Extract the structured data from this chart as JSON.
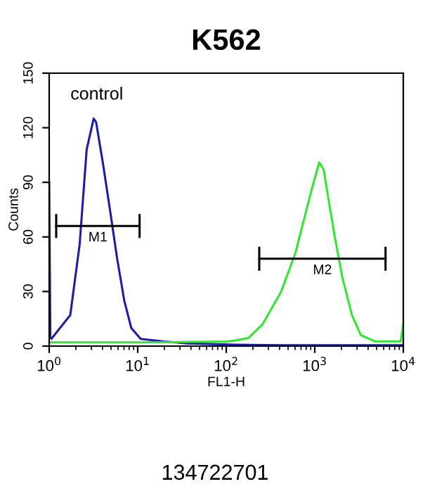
{
  "chart_data": {
    "type": "line",
    "title": "K562",
    "xlabel": "FL1-H",
    "ylabel": "Counts",
    "log": "x",
    "xlim": [
      1,
      10000
    ],
    "ylim": [
      0,
      150
    ],
    "xticks": [
      {
        "value": 1,
        "label": "10$^{0}$"
      },
      {
        "value": 10,
        "label": "10$^{1}$"
      },
      {
        "value": 100,
        "label": "10$^{2}$"
      },
      {
        "value": 1000,
        "label": "10$^{3}$"
      },
      {
        "value": 10000,
        "label": "10$^{4}$"
      }
    ],
    "yticks": [
      0,
      30,
      60,
      90,
      120,
      150
    ],
    "grid": false,
    "annotations": [
      "control",
      "134722701"
    ],
    "series": [
      {
        "color": "#1c1ca8",
        "x": [
          1,
          1.03,
          1.06,
          1.73,
          2.21,
          2.65,
          3.18,
          3.39,
          4.06,
          4.89,
          5.86,
          7.05,
          8.45,
          10.8,
          19.9,
          36.6,
          123,
          417,
          1413,
          10000
        ],
        "values": [
          90,
          5,
          4,
          17,
          56,
          108,
          125,
          123,
          100,
          74,
          48,
          25,
          10,
          4,
          2.5,
          1.5,
          0.8,
          0.5,
          0.5,
          0.5
        ]
      },
      {
        "color": "#33e633",
        "x": [
          1,
          10,
          100,
          123,
          178,
          257,
          417,
          603,
          776,
          933,
          1122,
          1259,
          1413,
          1698,
          2042,
          2630,
          3311,
          4786,
          9333,
          10000
        ],
        "values": [
          2,
          2,
          2.5,
          3,
          4.4,
          12,
          30,
          51,
          72,
          87,
          101,
          97,
          82,
          59,
          38,
          17,
          6,
          2.6,
          2.6,
          12
        ]
      },
      {
        "name": "M1",
        "color": "#000000",
        "x": [
          1.2,
          10.5
        ],
        "values": [
          66,
          66
        ]
      },
      {
        "name": "M2",
        "color": "#000000",
        "x": [
          236,
          6300
        ],
        "values": [
          48,
          48
        ]
      }
    ]
  }
}
